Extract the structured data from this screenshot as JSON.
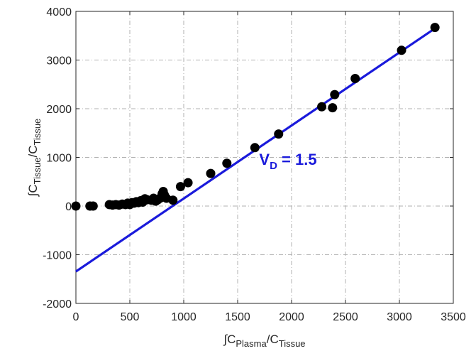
{
  "chart_data": {
    "type": "scatter",
    "title": "",
    "xlabel": {
      "prefix": "∫C",
      "sub1": "Plasma",
      "mid": "/C",
      "sub2": "Tissue"
    },
    "ylabel": {
      "prefix": "∫C",
      "sub1": "Tissue",
      "mid": "/C",
      "sub2": "Tissue"
    },
    "xlim": [
      0,
      3500
    ],
    "ylim": [
      -2000,
      4000
    ],
    "xticks": [
      0,
      500,
      1000,
      1500,
      2000,
      2500,
      3000,
      3500
    ],
    "yticks": [
      -2000,
      -1000,
      0,
      1000,
      2000,
      3000,
      4000
    ],
    "grid": true,
    "annotation": {
      "main": "V",
      "sub": "D",
      "rest": " = 1.5",
      "x": 1700,
      "y": 850
    },
    "colors": {
      "points": "#000000",
      "fit_line": "#1a1adb",
      "grid": "#b0b0b0",
      "axis": "#262626"
    },
    "fit_line": {
      "slope": 1.5,
      "intercept": -1345,
      "x_range": [
        0,
        3350
      ]
    },
    "points": [
      {
        "x": 0,
        "y": 0
      },
      {
        "x": 130,
        "y": 0
      },
      {
        "x": 160,
        "y": 0
      },
      {
        "x": 310,
        "y": 30
      },
      {
        "x": 340,
        "y": 20
      },
      {
        "x": 370,
        "y": 30
      },
      {
        "x": 400,
        "y": 20
      },
      {
        "x": 430,
        "y": 40
      },
      {
        "x": 460,
        "y": 30
      },
      {
        "x": 480,
        "y": 60
      },
      {
        "x": 500,
        "y": 30
      },
      {
        "x": 520,
        "y": 70
      },
      {
        "x": 540,
        "y": 60
      },
      {
        "x": 560,
        "y": 90
      },
      {
        "x": 580,
        "y": 70
      },
      {
        "x": 600,
        "y": 110
      },
      {
        "x": 620,
        "y": 80
      },
      {
        "x": 640,
        "y": 150
      },
      {
        "x": 660,
        "y": 130
      },
      {
        "x": 700,
        "y": 120
      },
      {
        "x": 720,
        "y": 160
      },
      {
        "x": 740,
        "y": 100
      },
      {
        "x": 760,
        "y": 130
      },
      {
        "x": 780,
        "y": 160
      },
      {
        "x": 800,
        "y": 250
      },
      {
        "x": 810,
        "y": 300
      },
      {
        "x": 820,
        "y": 230
      },
      {
        "x": 840,
        "y": 160
      },
      {
        "x": 900,
        "y": 120
      },
      {
        "x": 970,
        "y": 400
      },
      {
        "x": 1040,
        "y": 480
      },
      {
        "x": 1250,
        "y": 670
      },
      {
        "x": 1400,
        "y": 880
      },
      {
        "x": 1660,
        "y": 1200
      },
      {
        "x": 1880,
        "y": 1480
      },
      {
        "x": 2280,
        "y": 2040
      },
      {
        "x": 2380,
        "y": 2020
      },
      {
        "x": 2400,
        "y": 2290
      },
      {
        "x": 2590,
        "y": 2620
      },
      {
        "x": 3020,
        "y": 3200
      },
      {
        "x": 3330,
        "y": 3670
      }
    ]
  }
}
